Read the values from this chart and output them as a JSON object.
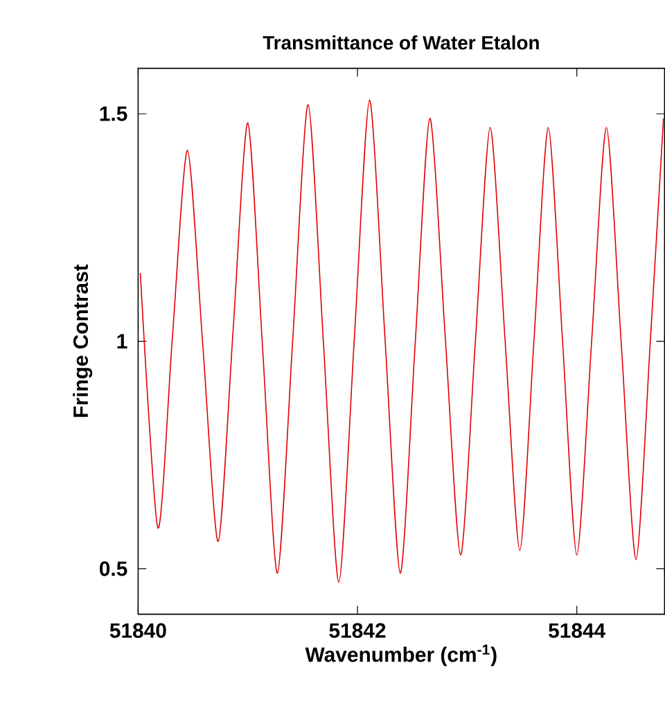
{
  "chart_data": {
    "type": "line",
    "title": "Transmittance of Water Etalon",
    "xlabel": "Wavenumber (cm$^{-1}$)",
    "ylabel": "Fringe Contrast",
    "x": [
      51840.02,
      51840.18,
      51840.31,
      51840.45,
      51840.59,
      51840.73,
      51840.865,
      51841.0,
      51841.135,
      51841.27,
      51841.41,
      51841.55,
      51841.69,
      51841.83,
      51841.97,
      51842.11,
      51842.25,
      51842.39,
      51842.525,
      51842.66,
      51842.8,
      51842.94,
      51843.075,
      51843.21,
      51843.345,
      51843.48,
      51843.61,
      51843.74,
      51843.87,
      51844.0,
      51844.135,
      51844.27,
      51844.405,
      51844.54,
      51844.67,
      51844.79
    ],
    "series": [
      {
        "color": "#e00000",
        "values": [
          1.15,
          0.59,
          1.0,
          1.42,
          0.99,
          0.56,
          1.02,
          1.48,
          0.985,
          0.49,
          1.005,
          1.52,
          0.995,
          0.47,
          1.0,
          1.53,
          1.01,
          0.49,
          0.99,
          1.49,
          1.01,
          0.53,
          1.0,
          1.47,
          1.005,
          0.54,
          1.005,
          1.47,
          1.0,
          0.53,
          1.0,
          1.47,
          0.995,
          0.52,
          1.0,
          1.49
        ]
      }
    ],
    "xlim": [
      51840,
      51844.8
    ],
    "ylim": [
      0.4,
      1.6
    ],
    "xticks": [
      51840,
      51842,
      51844
    ],
    "yticks": [
      0.5,
      1,
      1.5
    ]
  }
}
